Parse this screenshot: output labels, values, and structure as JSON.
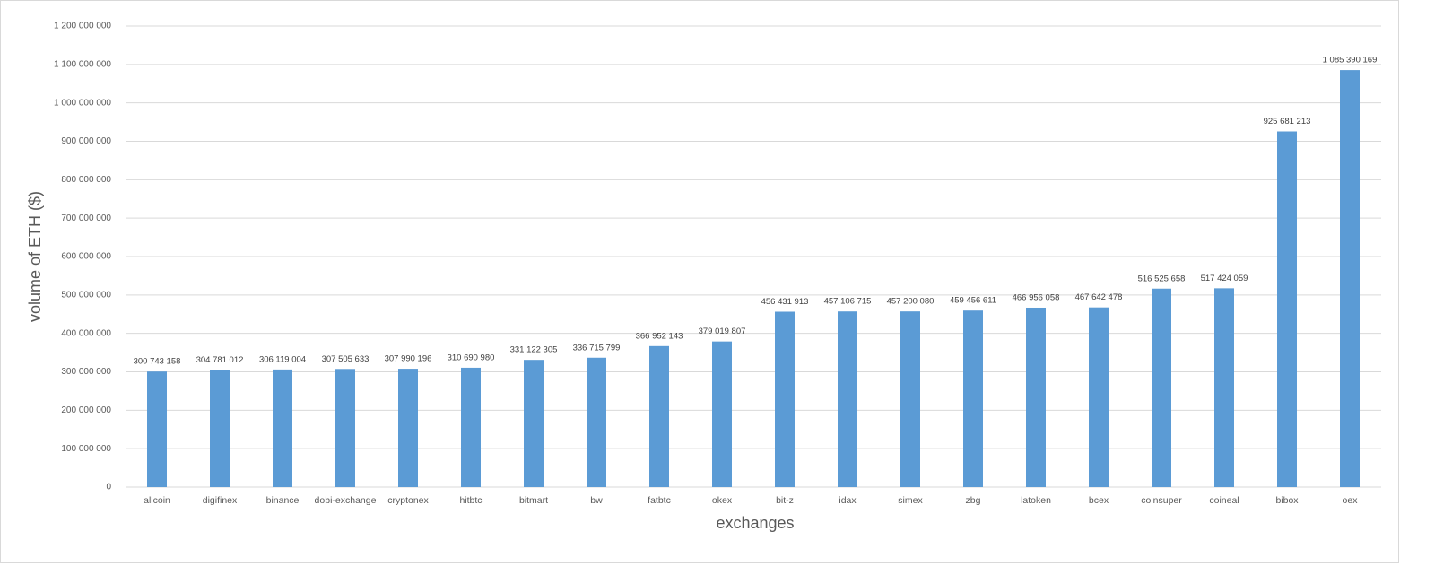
{
  "chart_data": {
    "type": "bar",
    "x_label": "exchanges",
    "y_label": "volume of ETH ($)",
    "categories": [
      "allcoin",
      "digifinex",
      "binance",
      "dobi-exchange",
      "cryptonex",
      "hitbtc",
      "bitmart",
      "bw",
      "fatbtc",
      "okex",
      "bit-z",
      "idax",
      "simex",
      "zbg",
      "latoken",
      "bcex",
      "coinsuper",
      "coineal",
      "bibox",
      "oex"
    ],
    "values": [
      300743158,
      304781012,
      306119004,
      307505633,
      307990196,
      310690980,
      331122305,
      336715799,
      366952143,
      379019807,
      456431913,
      457106715,
      457200080,
      459456611,
      466956058,
      467642478,
      516525658,
      517424059,
      925681213,
      1085390169
    ],
    "value_labels": [
      "300 743 158",
      "304 781 012",
      "306 119 004",
      "307 505 633",
      "307 990 196",
      "310 690 980",
      "331 122 305",
      "336 715 799",
      "366 952 143",
      "379 019 807",
      "456 431 913",
      "457 106 715",
      "457 200 080",
      "459 456 611",
      "466 956 058",
      "467 642 478",
      "516 525 658",
      "517 424 059",
      "925 681 213",
      "1 085 390 169"
    ],
    "color": "#5b9bd5",
    "ylim": [
      0,
      1200000000
    ],
    "yticks": [
      0,
      {
        "value": 100000000,
        "label": "100 000 000"
      },
      {
        "value": 200000000,
        "label": "200 000 000"
      },
      {
        "value": 300000000,
        "label": "300 000 000"
      },
      {
        "value": 400000000,
        "label": "400 000 000"
      },
      {
        "value": 500000000,
        "label": "500 000 000"
      },
      {
        "value": 600000000,
        "label": "600 000 000"
      },
      {
        "value": 700000000,
        "label": "700 000 000"
      },
      {
        "value": 800000000,
        "label": "800 000 000"
      },
      {
        "value": 900000000,
        "label": "900 000 000"
      },
      {
        "value": 1000000000,
        "label": "1 000 000 000"
      },
      {
        "value": 1100000000,
        "label": "1 100 000 000"
      },
      {
        "value": 1200000000,
        "label": "1 200 000 000"
      }
    ],
    "grid": true
  }
}
